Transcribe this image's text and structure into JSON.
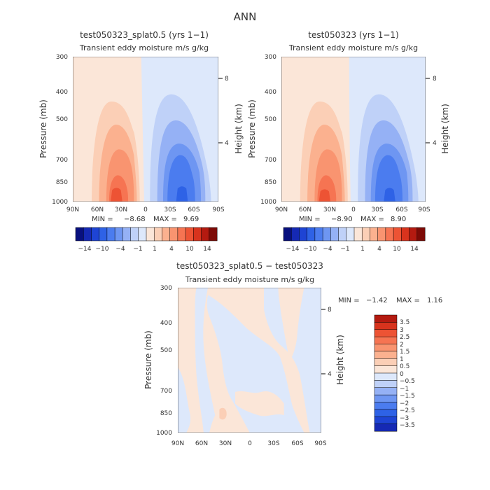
{
  "figure": {
    "title": "ANN"
  },
  "colors": {
    "neg": [
      "#08107f",
      "#1529b4",
      "#1e44d4",
      "#2e62e6",
      "#4b7cef",
      "#6e96f2",
      "#95b1f5",
      "#bfd1f8",
      "#dde8fb"
    ],
    "pos": [
      "#fbe6d8",
      "#fbcfb6",
      "#fbb18f",
      "#f99470",
      "#f67452",
      "#ed5334",
      "#d8331d",
      "#b41a10",
      "#7d0a06"
    ]
  },
  "chart_data": [
    {
      "id": "left",
      "type": "contour",
      "title": "test050323_splat0.5 (yrs 1-1)",
      "subtitle": "Transient eddy moisture m/s g/kg",
      "ylabel": "Pressure (mb)",
      "y2label": "Height (km)",
      "xticks": [
        "90N",
        "60N",
        "30N",
        "0",
        "30S",
        "60S",
        "90S"
      ],
      "yticks": [
        "300",
        "400",
        "500",
        "700",
        "850",
        "1000"
      ],
      "y2ticks": [
        "8",
        "4"
      ],
      "stats": {
        "min_label": "MIN =",
        "min": "-8.68",
        "max_label": "MAX =",
        "max": "9.69"
      },
      "colorbar_labels": [
        "-14",
        "-10",
        "-4",
        "-1",
        "1",
        "4",
        "10",
        "14"
      ]
    },
    {
      "id": "right",
      "type": "contour",
      "title": "test050323 (yrs 1-1)",
      "subtitle": "Transient eddy moisture m/s g/kg",
      "ylabel": "Pressure (mb)",
      "y2label": "Height (km)",
      "xticks": [
        "90N",
        "60N",
        "30N",
        "0",
        "30S",
        "60S",
        "90S"
      ],
      "yticks": [
        "300",
        "400",
        "500",
        "700",
        "850",
        "1000"
      ],
      "y2ticks": [
        "8",
        "4"
      ],
      "stats": {
        "min_label": "MIN =",
        "min": "-8.90",
        "max_label": "MAX =",
        "max": "8.90"
      },
      "colorbar_labels": [
        "-14",
        "-10",
        "-4",
        "-1",
        "1",
        "4",
        "10",
        "14"
      ]
    },
    {
      "id": "diff",
      "type": "contour",
      "title": "test050323_splat0.5 - test050323",
      "subtitle": "Transient eddy moisture m/s g/kg",
      "ylabel": "Pressure (mb)",
      "y2label": "Height (km)",
      "xticks": [
        "90N",
        "60N",
        "30N",
        "0",
        "30S",
        "60S",
        "90S"
      ],
      "yticks": [
        "300",
        "400",
        "500",
        "700",
        "850",
        "1000"
      ],
      "y2ticks": [
        "8",
        "4"
      ],
      "stats": {
        "min_label": "MIN =",
        "min": "-1.42",
        "max_label": "MAX =",
        "max": "1.16"
      },
      "colorbar_labels": [
        "3.5",
        "3",
        "2.5",
        "2",
        "1.5",
        "1",
        "0.5",
        "0",
        "-0.5",
        "-1",
        "-1.5",
        "-2",
        "-2.5",
        "-3",
        "-3.5"
      ]
    }
  ]
}
